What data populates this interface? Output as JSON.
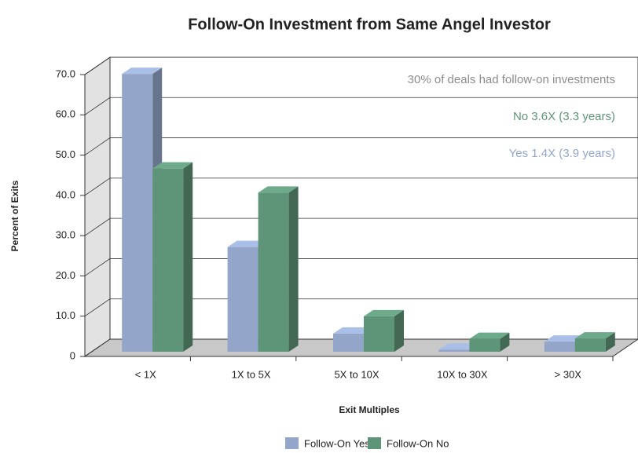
{
  "chart_data": {
    "type": "bar3d",
    "title": "Follow-On Investment from Same Angel Investor",
    "x_label": "Exit Multiples",
    "y_label": "Percent of Exits",
    "categories": [
      "< 1X",
      "1X to 5X",
      "5X to 10X",
      "10X to 30X",
      "> 30X"
    ],
    "series": [
      {
        "name": "Follow-On Yes",
        "color": "#93a6c9",
        "values": [
          69,
          26,
          4.5,
          0.5,
          2.5
        ]
      },
      {
        "name": "Follow-On No",
        "color": "#5e9478",
        "values": [
          45.5,
          39.5,
          8.8,
          3.2,
          3.3
        ]
      }
    ],
    "ylim": [
      0,
      70
    ],
    "yticks": [
      0,
      {
        "value": 10,
        "label": "10.0"
      },
      {
        "value": 20,
        "label": "20.0"
      },
      {
        "value": 30,
        "label": "30.0"
      },
      {
        "value": 40,
        "label": "40.0"
      },
      {
        "value": 50,
        "label": "50.0"
      },
      {
        "value": 60,
        "label": "60.0"
      },
      {
        "value": 70,
        "label": "70.0"
      }
    ],
    "grid": true,
    "annotations": [
      {
        "text": "30% of deals had follow-on investments",
        "color": "#8c8c8c"
      },
      {
        "text": "No 3.6X (3.3 years)",
        "color": "#5e9478"
      },
      {
        "text": "Yes 1.4X (3.9 years)",
        "color": "#93a6c9"
      }
    ],
    "legend": "bottom"
  }
}
